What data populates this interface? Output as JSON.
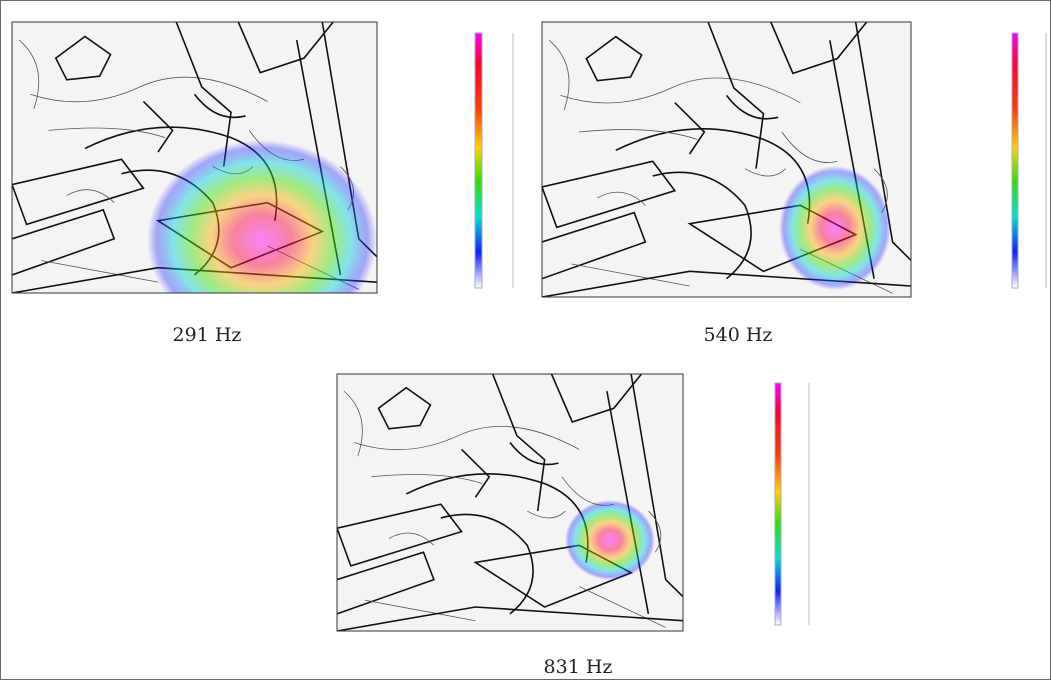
{
  "figures": [
    {
      "caption": "291 Hz"
    },
    {
      "caption": "540 Hz"
    },
    {
      "caption": "831 Hz"
    }
  ]
}
